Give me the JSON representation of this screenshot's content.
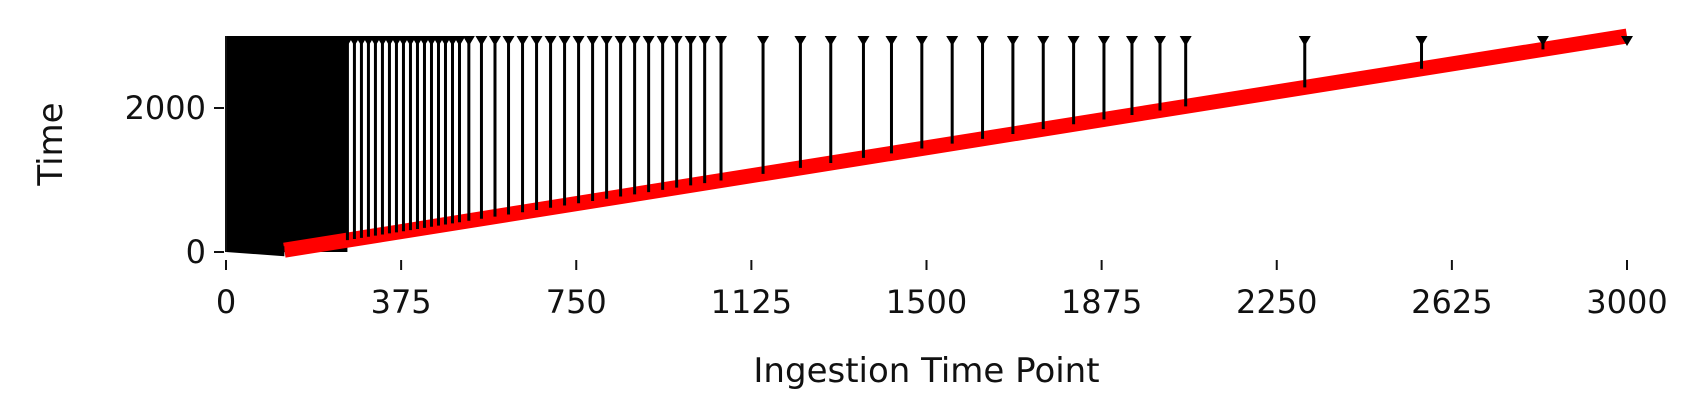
{
  "chart_data": {
    "type": "line",
    "title": "",
    "xlabel": "Ingestion Time Point",
    "ylabel": "Time",
    "xlim": [
      0,
      3000
    ],
    "ylim": [
      0,
      3000
    ],
    "x_ticks": [
      0,
      375,
      750,
      1125,
      1500,
      1875,
      2250,
      2625,
      3000
    ],
    "x_tick_labels": [
      "0",
      "375",
      "750",
      "1125",
      "1500",
      "1875",
      "2250",
      "2625",
      "3000"
    ],
    "y_ticks": [
      0,
      2000
    ],
    "y_tick_labels": [
      "0",
      "2000"
    ],
    "grid": false,
    "legend": "none",
    "series": [
      {
        "kind": "band",
        "color": "#ff0000",
        "points": [
          [
            125,
            25
          ],
          [
            3000,
            3000
          ]
        ]
      },
      {
        "kind": "stems",
        "color": "#000000",
        "top": 3000,
        "dense_range": [
          0,
          260
        ],
        "x": [
          260,
          275,
          290,
          305,
          320,
          335,
          350,
          365,
          380,
          395,
          410,
          425,
          440,
          455,
          470,
          485,
          500,
          520,
          547,
          576,
          605,
          635,
          665,
          695,
          725,
          755,
          785,
          815,
          845,
          875,
          905,
          935,
          965,
          995,
          1025,
          1060,
          1150,
          1230,
          1295,
          1365,
          1425,
          1490,
          1555,
          1620,
          1685,
          1750,
          1815,
          1880,
          1940,
          2000,
          2055,
          2310,
          2560,
          2820,
          3000
        ]
      }
    ]
  }
}
